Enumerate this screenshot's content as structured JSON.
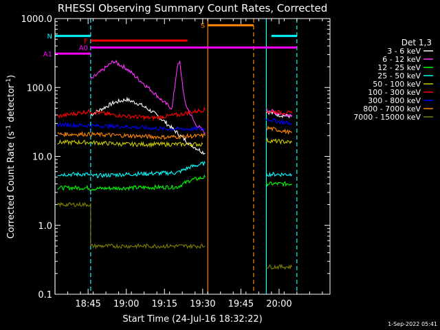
{
  "chart_data": {
    "type": "line",
    "title": "RHESSI Observing Summary Count Rates, Corrected",
    "xlabel": "Start Time (24-Jul-16 18:32:22)",
    "ylabel_pre": "Corrected Count Rate (s",
    "ylabel_sup": "-1",
    "ylabel_mid": " detector",
    "ylabel_post": ")",
    "yscale": "log",
    "ylim": [
      0.1,
      1000
    ],
    "xlim": [
      "18:32",
      "20:20"
    ],
    "xticks": [
      "18:45",
      "19:00",
      "19:15",
      "19:30",
      "19:45",
      "20:00"
    ],
    "ytick_labels": [
      "0.1",
      "1.0",
      "10.0",
      "100.0",
      "1000.0"
    ],
    "legend_title": "Det 1,3",
    "legend_placement": "right",
    "data_gaps": [
      [
        "19:32",
        "19:54"
      ]
    ],
    "series": [
      {
        "name": "3 - 6 keV",
        "color": "#ffffff",
        "points": [
          [
            "18:46",
            40
          ],
          [
            "18:50",
            48
          ],
          [
            "18:55",
            60
          ],
          [
            "19:00",
            67
          ],
          [
            "19:05",
            58
          ],
          [
            "19:10",
            45
          ],
          [
            "19:15",
            32
          ],
          [
            "19:20",
            22
          ],
          [
            "19:25",
            15
          ],
          [
            "19:31",
            11
          ]
        ]
      },
      {
        "name": "6 - 12 keV",
        "color": "#ff33ff",
        "points": [
          [
            "18:46",
            130
          ],
          [
            "18:50",
            170
          ],
          [
            "18:55",
            240
          ],
          [
            "19:00",
            190
          ],
          [
            "19:05",
            130
          ],
          [
            "19:10",
            90
          ],
          [
            "19:15",
            60
          ],
          [
            "19:18",
            50
          ],
          [
            "19:20",
            200
          ],
          [
            "19:21",
            230
          ],
          [
            "19:23",
            60
          ],
          [
            "19:27",
            30
          ],
          [
            "19:31",
            22
          ]
        ]
      },
      {
        "name": "12 - 25 keV",
        "color": "#00ff00",
        "points": [
          [
            "18:33",
            3.5
          ],
          [
            "18:45",
            3.5
          ],
          [
            "18:46",
            3.4
          ],
          [
            "19:00",
            3.5
          ],
          [
            "19:20",
            3.6
          ],
          [
            "19:25",
            4.5
          ],
          [
            "19:31",
            5
          ]
        ]
      },
      {
        "name": "25 - 50 keV",
        "color": "#00ffff",
        "points": [
          [
            "18:33",
            5.5
          ],
          [
            "18:45",
            5.5
          ],
          [
            "18:46",
            5.2
          ],
          [
            "19:00",
            5.5
          ],
          [
            "19:20",
            5.8
          ],
          [
            "19:25",
            7
          ],
          [
            "19:31",
            8
          ]
        ]
      },
      {
        "name": "50 - 100 keV",
        "color": "#cccc00",
        "points": [
          [
            "18:33",
            16
          ],
          [
            "18:45",
            16
          ],
          [
            "19:00",
            15
          ],
          [
            "19:30",
            15
          ]
        ]
      },
      {
        "name": "100 - 300 keV",
        "color": "#ff0000",
        "points": [
          [
            "18:33",
            38
          ],
          [
            "18:45",
            45
          ],
          [
            "18:55",
            40
          ],
          [
            "19:10",
            36
          ],
          [
            "19:20",
            40
          ],
          [
            "19:31",
            48
          ]
        ]
      },
      {
        "name": "300 - 800 keV",
        "color": "#0000ff",
        "points": [
          [
            "18:33",
            29
          ],
          [
            "18:45",
            28
          ],
          [
            "19:00",
            27
          ],
          [
            "19:15",
            25
          ],
          [
            "19:31",
            25
          ]
        ]
      },
      {
        "name": "800 - 7000 keV",
        "color": "#ff8800",
        "points": [
          [
            "18:33",
            21
          ],
          [
            "18:45",
            21
          ],
          [
            "19:00",
            20
          ],
          [
            "19:15",
            19
          ],
          [
            "19:31",
            20
          ]
        ]
      },
      {
        "name": "7000 - 15000 keV",
        "color": "#808000",
        "points": [
          [
            "18:33",
            2
          ],
          [
            "18:46",
            2
          ],
          [
            "18:46",
            0.5
          ],
          [
            "19:31",
            0.5
          ]
        ]
      }
    ],
    "series_after_gap": [
      {
        "name": "3 - 6 keV",
        "values": [
          [
            "19:55",
            45
          ],
          [
            "20:00",
            40
          ],
          [
            "20:05",
            38
          ]
        ]
      },
      {
        "name": "6 - 12 keV",
        "values": [
          [
            "19:55",
            48
          ],
          [
            "20:00",
            42
          ],
          [
            "20:05",
            40
          ]
        ]
      },
      {
        "name": "12 - 25 keV",
        "values": [
          [
            "19:55",
            4
          ],
          [
            "20:05",
            4
          ]
        ]
      },
      {
        "name": "25 - 50 keV",
        "values": [
          [
            "19:55",
            5.5
          ],
          [
            "20:05",
            5.5
          ]
        ]
      },
      {
        "name": "50 - 100 keV",
        "values": [
          [
            "19:55",
            17
          ],
          [
            "20:05",
            16
          ]
        ]
      },
      {
        "name": "100 - 300 keV",
        "values": [
          [
            "19:55",
            45
          ],
          [
            "20:00",
            44
          ],
          [
            "20:05",
            42
          ]
        ]
      },
      {
        "name": "300 - 800 keV",
        "values": [
          [
            "19:55",
            35
          ],
          [
            "20:00",
            32
          ],
          [
            "20:05",
            30
          ]
        ]
      },
      {
        "name": "800 - 7000 keV",
        "values": [
          [
            "19:55",
            26
          ],
          [
            "20:00",
            24
          ],
          [
            "20:05",
            22
          ]
        ]
      },
      {
        "name": "7000 - 15000 keV",
        "values": [
          [
            "19:55",
            0.25
          ],
          [
            "20:05",
            0.25
          ]
        ]
      }
    ],
    "flag_bars": [
      {
        "label": "N",
        "color": "#00ffff",
        "level": 560,
        "ranges": [
          [
            "18:32",
            "18:46"
          ],
          [
            "19:57",
            "20:07"
          ]
        ]
      },
      {
        "label": "F",
        "color": "#ff0000",
        "level": 480,
        "ranges": [
          [
            "18:46",
            "19:24"
          ]
        ]
      },
      {
        "label": "A0",
        "color": "#ff00ff",
        "level": 380,
        "ranges": [
          [
            "18:46",
            "20:07"
          ]
        ]
      },
      {
        "label": "A1",
        "color": "#ff00ff",
        "level": 310,
        "ranges": [
          [
            "18:32",
            "18:46"
          ]
        ]
      },
      {
        "label": "S",
        "color": "#ff8800",
        "level": 800,
        "ranges": [
          [
            "19:32",
            "19:50"
          ]
        ]
      }
    ],
    "vertical_lines": [
      {
        "time": "18:32",
        "color": "#00ffff",
        "style": "solid"
      },
      {
        "time": "18:46",
        "color": "#00ffff",
        "style": "dashed"
      },
      {
        "time": "19:32",
        "color": "#ff8800",
        "style": "solid"
      },
      {
        "time": "19:50",
        "color": "#ff8800",
        "style": "dashed"
      },
      {
        "time": "19:55",
        "color": "#00ffff",
        "style": "solid"
      },
      {
        "time": "20:07",
        "color": "#00ffff",
        "style": "dashed"
      }
    ],
    "grid": false,
    "footer": "1-Sep-2022 05:41"
  }
}
